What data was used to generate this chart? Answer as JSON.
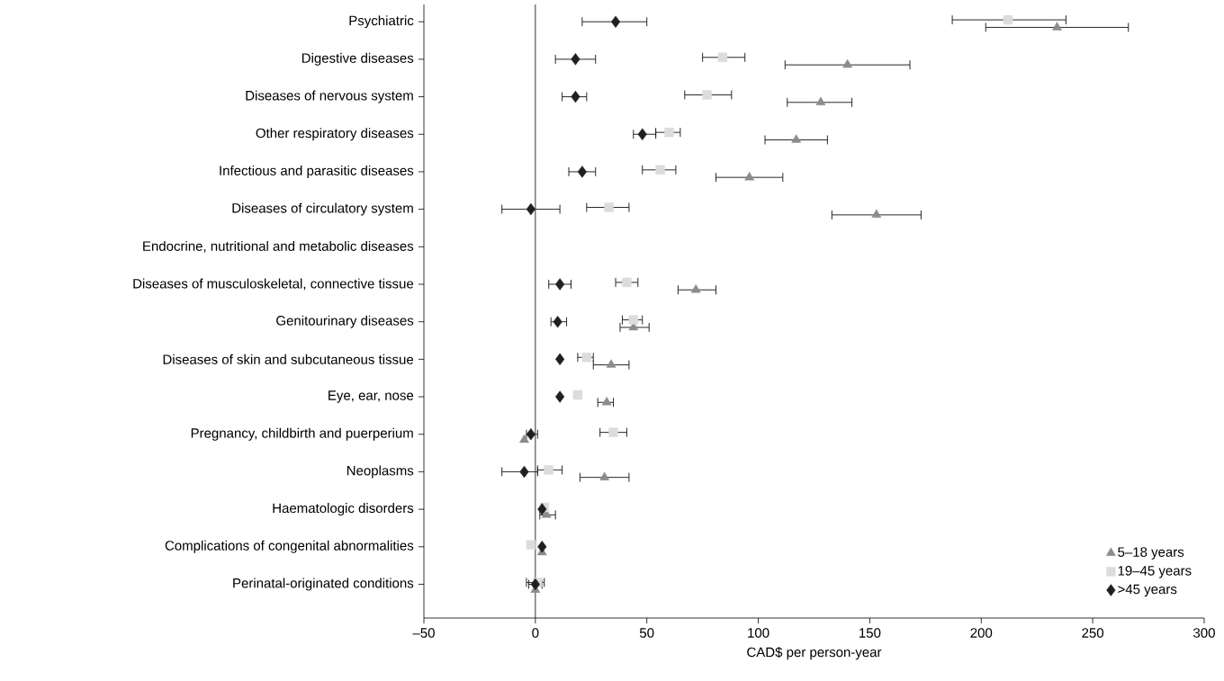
{
  "chart_data": {
    "type": "scatter",
    "orientation": "horizontal",
    "categories": [
      "Psychiatric",
      "Digestive diseases",
      "Diseases of nervous system",
      "Other respiratory diseases",
      "Infectious and parasitic diseases",
      "Diseases of circulatory system",
      "Endocrine, nutritional and metabolic diseases",
      "Diseases of musculoskeletal, connective tissue",
      "Genitourinary diseases",
      "Diseases of skin and subcutaneous tissue",
      "Eye, ear, nose",
      "Pregnancy, childbirth and puerperium",
      "Neoplasms",
      "Haematologic disorders",
      "Complications of congenital abnormalities",
      "Perinatal-originated conditions"
    ],
    "xlabel": "CAD$ per person-year",
    "xlim": [
      -50,
      300
    ],
    "xticks": [
      {
        "value": -50,
        "label": "–50"
      },
      0,
      50,
      100,
      150,
      200,
      250,
      300
    ],
    "legend": "bottom right",
    "ref_lines": [
      {
        "axis": "x",
        "value": 0
      }
    ],
    "series": [
      {
        "name": "5–18 years",
        "color": "#8c8c8c",
        "marker": "triangle",
        "values": [
          234,
          140,
          128,
          117,
          96,
          153,
          null,
          72,
          44,
          34,
          32,
          -5,
          31,
          5,
          3,
          0
        ],
        "errors": [
          [
            202,
            266
          ],
          [
            112,
            168
          ],
          [
            113,
            142
          ],
          [
            103,
            131
          ],
          [
            81,
            111
          ],
          [
            133,
            173
          ],
          null,
          [
            64,
            81
          ],
          [
            38,
            51
          ],
          [
            26,
            42
          ],
          [
            28,
            35
          ],
          null,
          [
            20,
            42
          ],
          [
            2,
            9
          ],
          null,
          null
        ]
      },
      {
        "name": "19–45 years",
        "color": "#dcdcdc",
        "marker": "square",
        "values": [
          212,
          84,
          77,
          60,
          56,
          33,
          null,
          41,
          44,
          23,
          19,
          35,
          6,
          4,
          -2,
          1
        ],
        "errors": [
          [
            187,
            238
          ],
          [
            75,
            94
          ],
          [
            67,
            88
          ],
          [
            54,
            65
          ],
          [
            48,
            63
          ],
          [
            23,
            42
          ],
          null,
          [
            36,
            46
          ],
          [
            39,
            48
          ],
          [
            19,
            26
          ],
          null,
          [
            29,
            41
          ],
          [
            1,
            12
          ],
          null,
          null,
          [
            -4,
            4
          ]
        ]
      },
      {
        "name": ">45 years",
        "color": "#231f20",
        "marker": "diamond",
        "values": [
          36,
          18,
          18,
          48,
          21,
          -2,
          null,
          11,
          10,
          11,
          11,
          -2,
          -5,
          3,
          3,
          0
        ],
        "errors": [
          [
            21,
            50
          ],
          [
            9,
            27
          ],
          [
            12,
            23
          ],
          [
            44,
            54
          ],
          [
            15,
            27
          ],
          [
            -15,
            11
          ],
          null,
          [
            6,
            16
          ],
          [
            7,
            14
          ],
          null,
          null,
          [
            -4,
            1
          ],
          [
            -15,
            1
          ],
          null,
          null,
          [
            -3,
            3
          ]
        ]
      }
    ]
  }
}
